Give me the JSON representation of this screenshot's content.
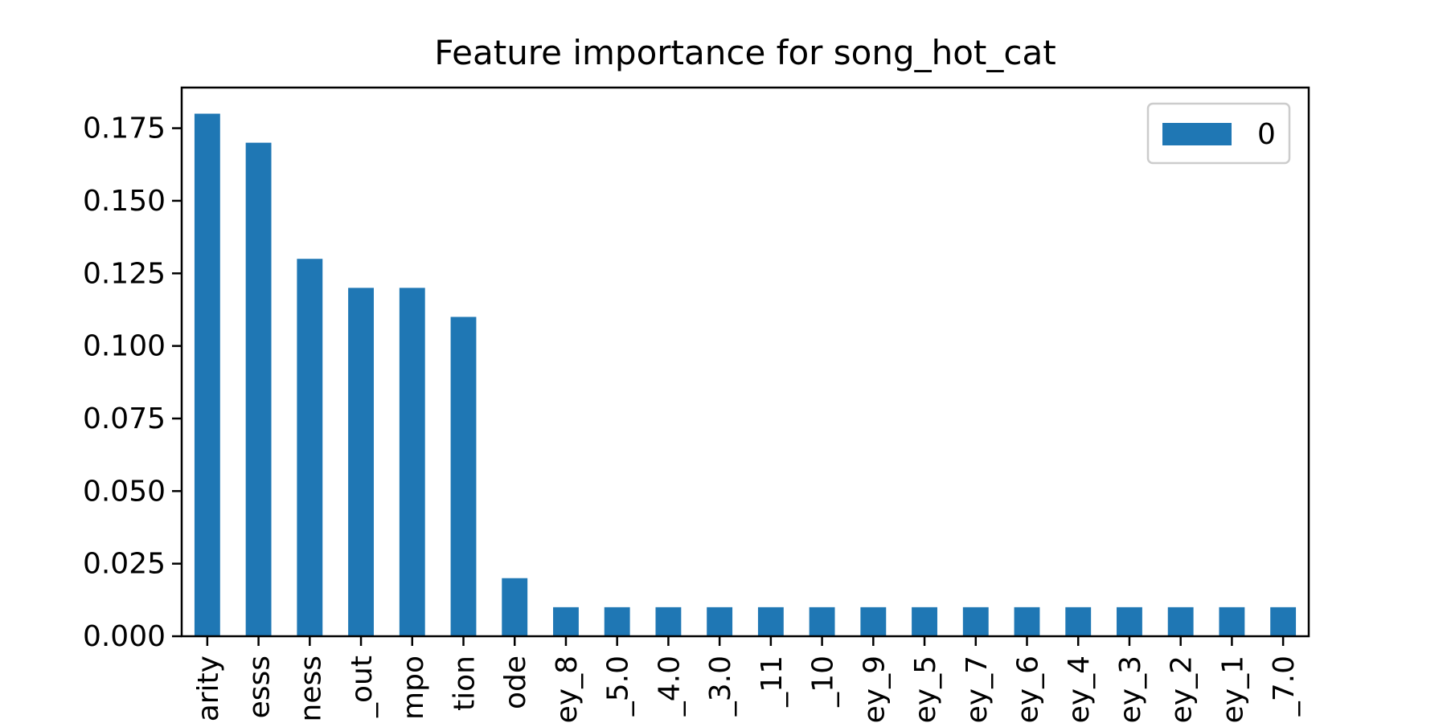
{
  "chart_data": {
    "type": "bar",
    "title": "Feature importance for song_hot_cat",
    "xlabel": "",
    "ylabel": "",
    "categories": [
      "arity",
      "esss",
      "ness",
      "_out",
      "mpo",
      "tion",
      "ode",
      "ey_8",
      "_5.0",
      "_4.0",
      "_3.0",
      "_11",
      "_10",
      "ey_9",
      "ey_5",
      "ey_7",
      "ey_6",
      "ey_4",
      "ey_3",
      "ey_2",
      "ey_1",
      "_7.0"
    ],
    "series": [
      {
        "name": "0",
        "values": [
          0.18,
          0.17,
          0.13,
          0.12,
          0.12,
          0.11,
          0.02,
          0.01,
          0.01,
          0.01,
          0.01,
          0.01,
          0.01,
          0.01,
          0.01,
          0.01,
          0.01,
          0.01,
          0.01,
          0.01,
          0.01,
          0.01
        ]
      }
    ],
    "ylim": [
      0,
      0.189
    ],
    "yticks": [
      "0.000",
      "0.025",
      "0.050",
      "0.075",
      "0.100",
      "0.125",
      "0.150",
      "0.175"
    ],
    "legend": {
      "position": "top-right",
      "entries": [
        "0"
      ]
    },
    "grid": false,
    "colors": {
      "bar": "#1f77b4",
      "axis": "#000000",
      "legend_border": "#cccccc"
    }
  }
}
